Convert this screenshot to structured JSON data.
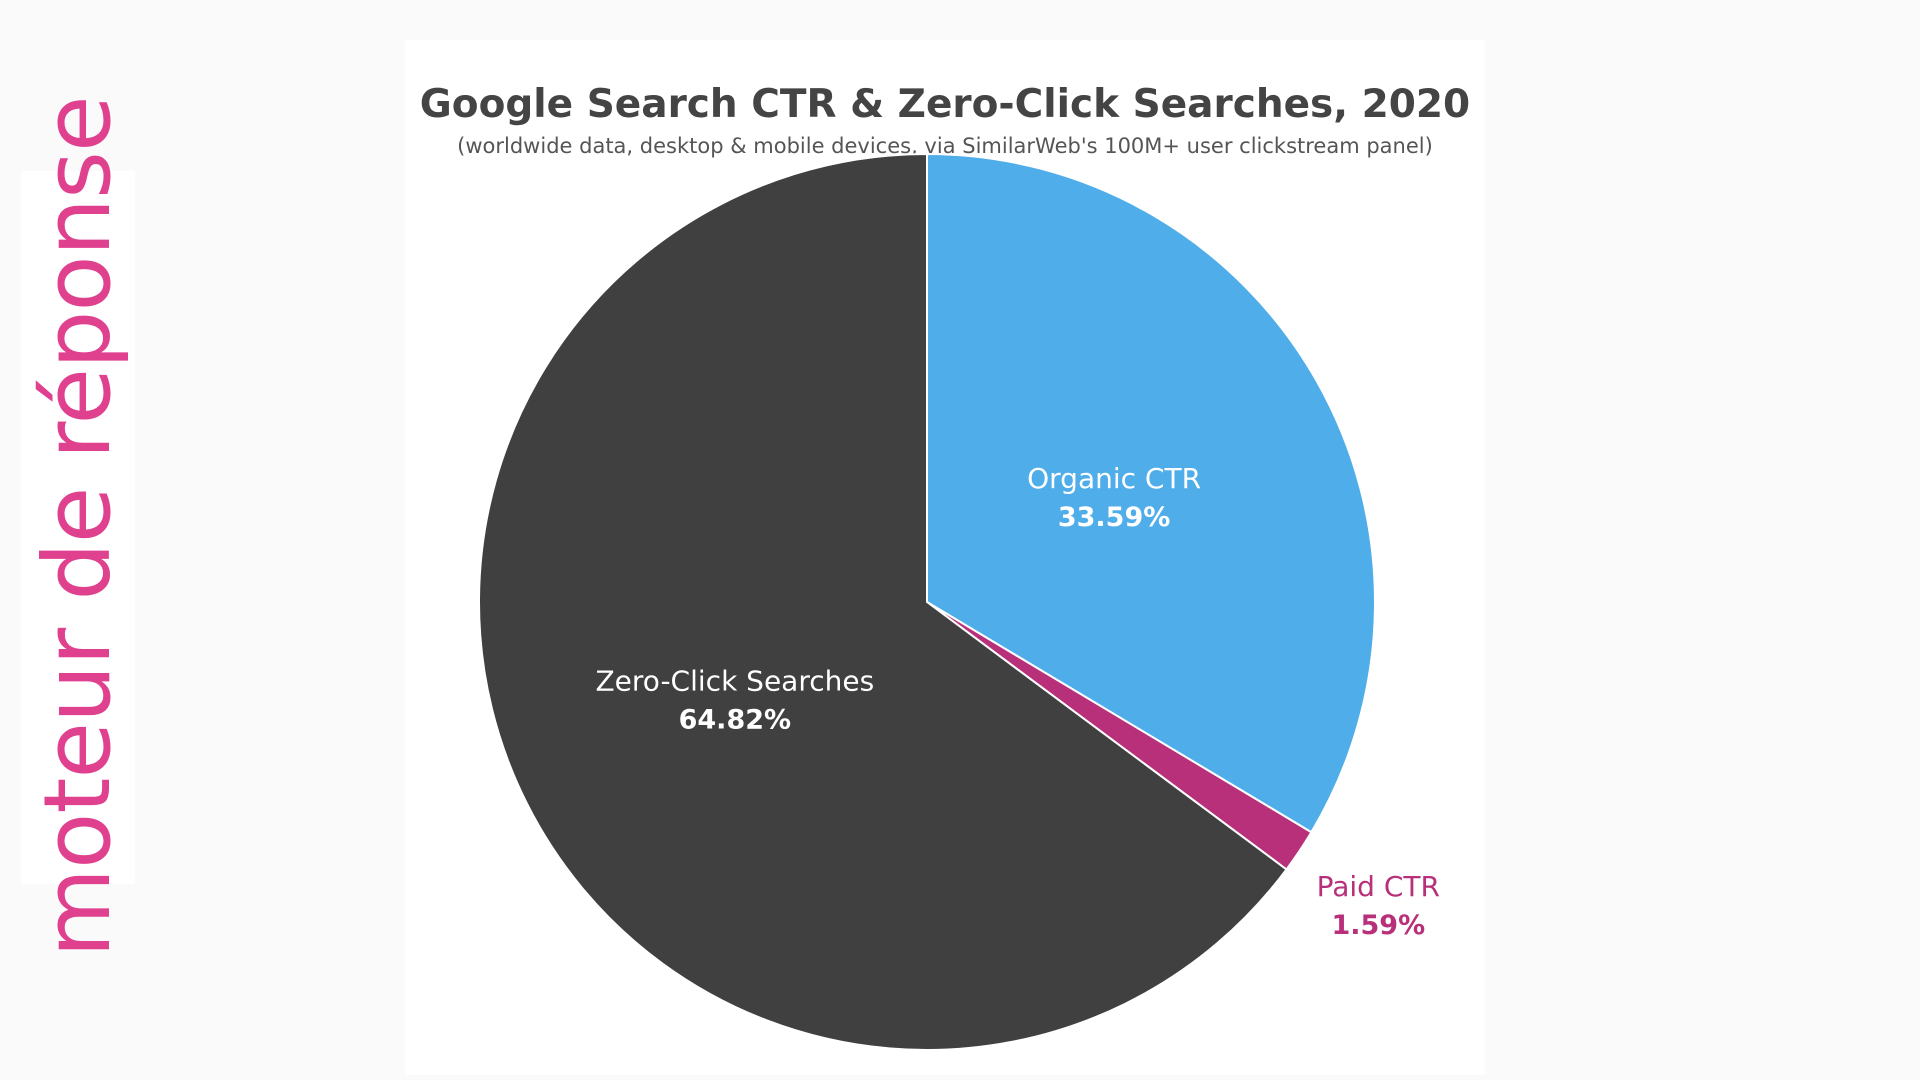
{
  "side_label": "moteur de réponse",
  "colors": {
    "side_label": "#e0418f",
    "organic": "#4fadea",
    "paid": "#b8307a",
    "zero_click": "#404040",
    "inside_text": "#ffffff"
  },
  "chart_data": {
    "type": "pie",
    "title": "Google Search CTR & Zero-Click Searches, 2020",
    "subtitle": "(worldwide data, desktop & mobile devices, via SimilarWeb's 100M+ user clickstream panel)",
    "slices": [
      {
        "label": "Organic CTR",
        "value": 33.59,
        "value_label": "33.59%",
        "color": "#4fadea",
        "label_position": "inside"
      },
      {
        "label": "Paid CTR",
        "value": 1.59,
        "value_label": "1.59%",
        "color": "#b8307a",
        "label_position": "outside"
      },
      {
        "label": "Zero-Click Searches",
        "value": 64.82,
        "value_label": "64.82%",
        "color": "#404040",
        "label_position": "inside"
      }
    ],
    "start_angle": "12 o'clock",
    "direction": "clockwise",
    "legend": "none"
  }
}
